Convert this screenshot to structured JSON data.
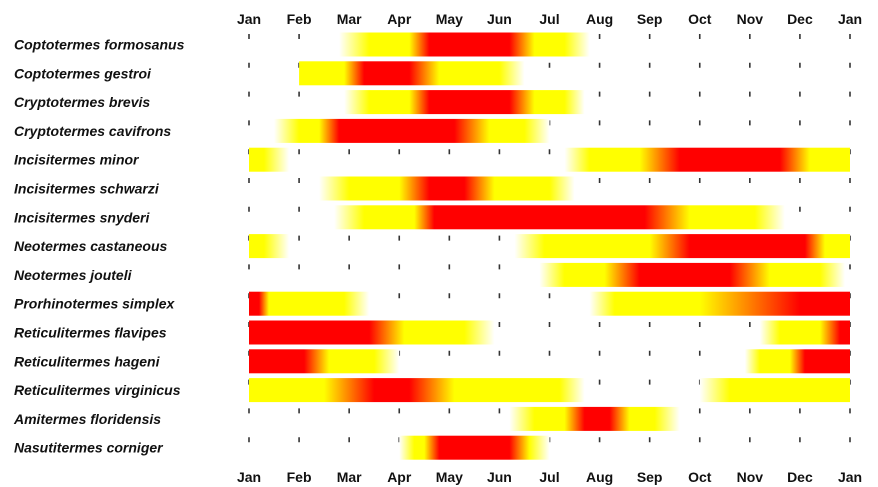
{
  "chart_data": {
    "type": "gantt-heatmap",
    "title": "",
    "xlabel": "",
    "ylabel": "",
    "x_unit": "month",
    "xlim": [
      0,
      12
    ],
    "months_top": [
      "Jan",
      "Feb",
      "Mar",
      "Apr",
      "May",
      "Jun",
      "Jul",
      "Aug",
      "Sep",
      "Oct",
      "Nov",
      "Dec",
      "Jan"
    ],
    "months_bottom": [
      "Jan",
      "Feb",
      "Mar",
      "Apr",
      "May",
      "Jun",
      "Jul",
      "Aug",
      "Sep",
      "Oct",
      "Nov",
      "Dec",
      "Jan"
    ],
    "colors": {
      "peak": "#ff0000",
      "active": "#ffff00",
      "fade": "#ffffff"
    },
    "series": [
      {
        "name": "Coptotermes formosanus",
        "bars": [
          {
            "start": 1.8,
            "end": 6.8,
            "stops": [
              [
                1.8,
                "fade"
              ],
              [
                2.4,
                "active"
              ],
              [
                3.2,
                "active"
              ],
              [
                3.6,
                "peak"
              ],
              [
                5.2,
                "peak"
              ],
              [
                5.7,
                "active"
              ],
              [
                6.3,
                "active"
              ],
              [
                6.8,
                "fade"
              ]
            ]
          }
        ]
      },
      {
        "name": "Coptotermes gestroi",
        "bars": [
          {
            "start": 1.0,
            "end": 5.5,
            "stops": [
              [
                1.0,
                "active"
              ],
              [
                1.9,
                "active"
              ],
              [
                2.3,
                "peak"
              ],
              [
                3.2,
                "peak"
              ],
              [
                3.8,
                "active"
              ],
              [
                5.0,
                "active"
              ],
              [
                5.5,
                "fade"
              ]
            ]
          }
        ]
      },
      {
        "name": "Cryptotermes brevis",
        "bars": [
          {
            "start": 1.9,
            "end": 6.7,
            "stops": [
              [
                1.9,
                "fade"
              ],
              [
                2.4,
                "active"
              ],
              [
                3.2,
                "active"
              ],
              [
                3.6,
                "peak"
              ],
              [
                5.2,
                "peak"
              ],
              [
                5.7,
                "active"
              ],
              [
                6.3,
                "active"
              ],
              [
                6.7,
                "fade"
              ]
            ]
          }
        ]
      },
      {
        "name": "Cryptotermes cavifrons",
        "bars": [
          {
            "start": 0.5,
            "end": 6.0,
            "stops": [
              [
                0.5,
                "fade"
              ],
              [
                1.0,
                "active"
              ],
              [
                1.4,
                "active"
              ],
              [
                1.8,
                "peak"
              ],
              [
                4.1,
                "peak"
              ],
              [
                4.8,
                "active"
              ],
              [
                5.5,
                "active"
              ],
              [
                6.0,
                "fade"
              ]
            ]
          }
        ]
      },
      {
        "name": "Incisitermes minor",
        "bars": [
          {
            "start": 0.0,
            "end": 0.8,
            "stops": [
              [
                0.0,
                "active"
              ],
              [
                0.3,
                "active"
              ],
              [
                0.8,
                "fade"
              ]
            ]
          },
          {
            "start": 6.3,
            "end": 12.0,
            "stops": [
              [
                6.3,
                "fade"
              ],
              [
                6.8,
                "active"
              ],
              [
                7.8,
                "active"
              ],
              [
                8.6,
                "peak"
              ],
              [
                10.6,
                "peak"
              ],
              [
                11.2,
                "active"
              ],
              [
                12.0,
                "active"
              ]
            ]
          }
        ]
      },
      {
        "name": "Incisitermes schwarzi",
        "bars": [
          {
            "start": 1.4,
            "end": 6.5,
            "stops": [
              [
                1.4,
                "fade"
              ],
              [
                2.0,
                "active"
              ],
              [
                3.0,
                "active"
              ],
              [
                3.6,
                "peak"
              ],
              [
                4.3,
                "peak"
              ],
              [
                4.9,
                "active"
              ],
              [
                6.0,
                "active"
              ],
              [
                6.5,
                "fade"
              ]
            ]
          }
        ]
      },
      {
        "name": "Incisitermes snyderi",
        "bars": [
          {
            "start": 1.7,
            "end": 10.7,
            "stops": [
              [
                1.7,
                "fade"
              ],
              [
                2.3,
                "active"
              ],
              [
                3.3,
                "active"
              ],
              [
                3.7,
                "peak"
              ],
              [
                7.9,
                "peak"
              ],
              [
                8.8,
                "active"
              ],
              [
                10.1,
                "active"
              ],
              [
                10.7,
                "fade"
              ]
            ]
          }
        ]
      },
      {
        "name": "Neotermes castaneous",
        "bars": [
          {
            "start": 0.0,
            "end": 0.8,
            "stops": [
              [
                0.0,
                "active"
              ],
              [
                0.3,
                "active"
              ],
              [
                0.8,
                "fade"
              ]
            ]
          },
          {
            "start": 5.3,
            "end": 12.0,
            "stops": [
              [
                5.3,
                "fade"
              ],
              [
                5.9,
                "active"
              ],
              [
                8.0,
                "active"
              ],
              [
                8.8,
                "peak"
              ],
              [
                11.1,
                "peak"
              ],
              [
                11.5,
                "active"
              ],
              [
                12.0,
                "active"
              ]
            ]
          }
        ]
      },
      {
        "name": "Neotermes jouteli",
        "bars": [
          {
            "start": 5.8,
            "end": 11.9,
            "stops": [
              [
                5.8,
                "fade"
              ],
              [
                6.3,
                "active"
              ],
              [
                7.1,
                "active"
              ],
              [
                7.8,
                "peak"
              ],
              [
                9.6,
                "peak"
              ],
              [
                10.4,
                "active"
              ],
              [
                11.4,
                "active"
              ],
              [
                11.9,
                "fade"
              ]
            ]
          }
        ]
      },
      {
        "name": "Prorhinotermes simplex",
        "bars": [
          {
            "start": 0.0,
            "end": 2.4,
            "stops": [
              [
                0.0,
                "peak"
              ],
              [
                0.2,
                "peak"
              ],
              [
                0.4,
                "active"
              ],
              [
                1.9,
                "active"
              ],
              [
                2.4,
                "fade"
              ]
            ]
          },
          {
            "start": 6.8,
            "end": 12.0,
            "stops": [
              [
                6.8,
                "fade"
              ],
              [
                7.3,
                "active"
              ],
              [
                9.0,
                "active"
              ],
              [
                11.0,
                "peak"
              ],
              [
                12.0,
                "peak"
              ]
            ]
          }
        ]
      },
      {
        "name": "Reticulitermes flavipes",
        "bars": [
          {
            "start": 0.0,
            "end": 4.9,
            "stops": [
              [
                0.0,
                "peak"
              ],
              [
                2.4,
                "peak"
              ],
              [
                3.1,
                "active"
              ],
              [
                4.3,
                "active"
              ],
              [
                4.9,
                "fade"
              ]
            ]
          },
          {
            "start": 10.2,
            "end": 12.0,
            "stops": [
              [
                10.2,
                "fade"
              ],
              [
                10.6,
                "active"
              ],
              [
                11.4,
                "active"
              ],
              [
                11.8,
                "peak"
              ],
              [
                12.0,
                "peak"
              ]
            ]
          }
        ]
      },
      {
        "name": "Reticulitermes hageni",
        "bars": [
          {
            "start": 0.0,
            "end": 3.0,
            "stops": [
              [
                0.0,
                "peak"
              ],
              [
                1.1,
                "peak"
              ],
              [
                1.6,
                "active"
              ],
              [
                2.5,
                "active"
              ],
              [
                3.0,
                "fade"
              ]
            ]
          },
          {
            "start": 9.9,
            "end": 12.0,
            "stops": [
              [
                9.9,
                "fade"
              ],
              [
                10.2,
                "active"
              ],
              [
                10.8,
                "active"
              ],
              [
                11.1,
                "peak"
              ],
              [
                12.0,
                "peak"
              ]
            ]
          }
        ]
      },
      {
        "name": "Reticulitermes virginicus",
        "bars": [
          {
            "start": 0.0,
            "end": 6.7,
            "stops": [
              [
                0.0,
                "active"
              ],
              [
                1.5,
                "active"
              ],
              [
                2.5,
                "peak"
              ],
              [
                3.2,
                "peak"
              ],
              [
                4.1,
                "active"
              ],
              [
                6.2,
                "active"
              ],
              [
                6.7,
                "fade"
              ]
            ]
          },
          {
            "start": 9.0,
            "end": 12.0,
            "stops": [
              [
                9.0,
                "fade"
              ],
              [
                9.6,
                "active"
              ],
              [
                12.0,
                "active"
              ]
            ]
          }
        ]
      },
      {
        "name": "Amitermes floridensis",
        "bars": [
          {
            "start": 5.2,
            "end": 8.6,
            "stops": [
              [
                5.2,
                "fade"
              ],
              [
                5.7,
                "active"
              ],
              [
                6.3,
                "active"
              ],
              [
                6.7,
                "peak"
              ],
              [
                7.2,
                "peak"
              ],
              [
                7.6,
                "active"
              ],
              [
                8.1,
                "active"
              ],
              [
                8.6,
                "fade"
              ]
            ]
          }
        ]
      },
      {
        "name": "Nasutitermes corniger",
        "bars": [
          {
            "start": 3.0,
            "end": 6.0,
            "stops": [
              [
                3.0,
                "fade"
              ],
              [
                3.3,
                "active"
              ],
              [
                3.5,
                "active"
              ],
              [
                3.8,
                "peak"
              ],
              [
                5.2,
                "peak"
              ],
              [
                5.6,
                "active"
              ],
              [
                6.0,
                "fade"
              ]
            ]
          }
        ]
      }
    ]
  }
}
